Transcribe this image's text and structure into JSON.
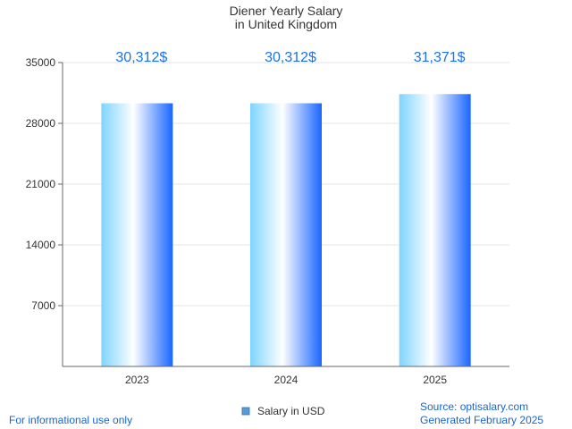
{
  "chart_data": {
    "type": "bar",
    "title_lines": [
      "Diener Yearly Salary",
      "in United Kingdom"
    ],
    "categories": [
      "2023",
      "2024",
      "2025"
    ],
    "series": [
      {
        "name": "Salary in USD",
        "values": [
          30312,
          30312,
          31371
        ]
      }
    ],
    "value_labels": [
      "30,312$",
      "30,312$",
      "31,371$"
    ],
    "y_ticks": [
      7000,
      14000,
      21000,
      28000,
      35000
    ],
    "ylim": [
      0,
      35000
    ],
    "grid": true,
    "legend_position": "bottom-center",
    "bar_gradient": [
      "#7fd4ff",
      "#ffffff",
      "#1a66ff"
    ]
  },
  "footer": {
    "left": "For informational use only",
    "right_line1": "Source: optisalary.com",
    "right_line2": "Generated February 2025"
  },
  "colors": {
    "value_label": "#1a73e8",
    "footer_text": "#1a66cc",
    "legend_swatch": "#5b9bd5"
  }
}
